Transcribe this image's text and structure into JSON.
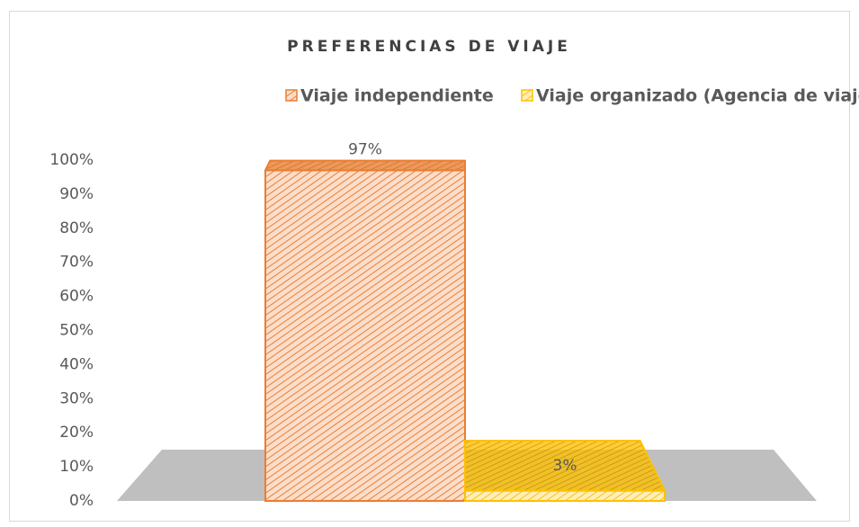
{
  "chart_data": {
    "type": "bar",
    "title": "PREFERENCIAS DE VIAJE",
    "series": [
      {
        "name": "Viaje independiente",
        "color": "#ed7d31",
        "values": [
          97
        ],
        "value_labels": [
          "97%"
        ]
      },
      {
        "name": "Viaje organizado (Agencia de viajes)",
        "color": "#ffc000",
        "values": [
          3
        ],
        "value_labels": [
          "3%"
        ]
      }
    ],
    "ylim": [
      0,
      100
    ],
    "yticks": [
      {
        "value": 0,
        "label": "0%"
      },
      {
        "value": 10,
        "label": "10%"
      },
      {
        "value": 20,
        "label": "20%"
      },
      {
        "value": 30,
        "label": "30%"
      },
      {
        "value": 40,
        "label": "40%"
      },
      {
        "value": 50,
        "label": "50%"
      },
      {
        "value": 60,
        "label": "60%"
      },
      {
        "value": 70,
        "label": "70%"
      },
      {
        "value": 80,
        "label": "80%"
      },
      {
        "value": 90,
        "label": "90%"
      },
      {
        "value": 100,
        "label": "100%"
      }
    ],
    "legend": "top"
  }
}
